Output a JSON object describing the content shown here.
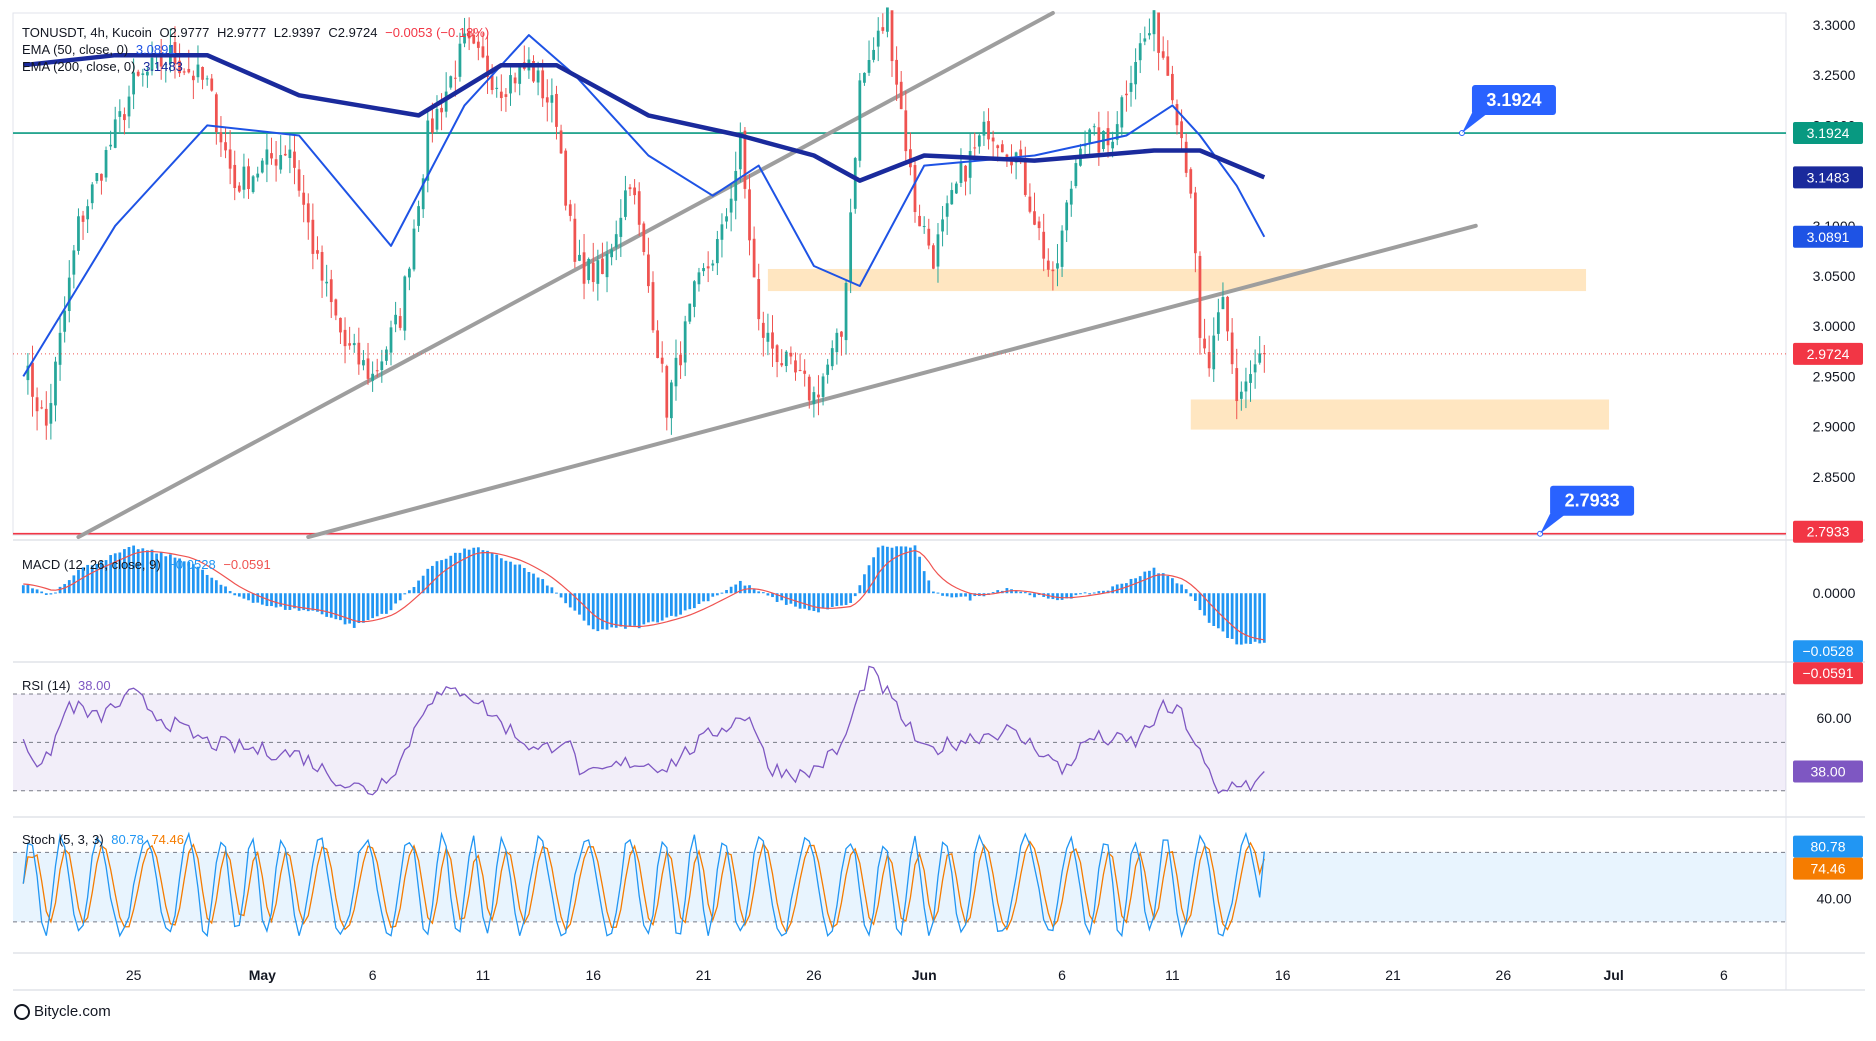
{
  "header": {
    "symbol": "TONUSDT, 4h, Kucoin",
    "open": "O2.9777",
    "high": "H2.9777",
    "low": "L2.9397",
    "close": "C2.9724",
    "change": "−0.0053 (−0.18%)",
    "ema50_label": "EMA (50, close, 0)",
    "ema50_value": "3.0891",
    "ema200_label": "EMA (200, close, 0)",
    "ema200_value": "3.1483"
  },
  "indicators": {
    "macd_label": "MACD (12, 26, close, 9)",
    "macd_value": "−0.0528",
    "signal_value": "−0.0591",
    "rsi_label": "RSI (14)",
    "rsi_value": "38.00",
    "stoch_label": "Stoch (5, 3, 3)",
    "stoch_k": "80.78",
    "stoch_d": "74.46"
  },
  "footer": {
    "brand": "Bitycle.com"
  },
  "colors": {
    "up": "#26a69a",
    "down": "#ef5350",
    "ema50": "#1e53e5",
    "ema200": "#1a2a9c",
    "macd_hist": "#2196f3",
    "macd_signal": "#ef5350",
    "rsi": "#7e57c2",
    "stoch_k": "#2196f3",
    "stoch_d": "#f57c00",
    "horizontal_green": "#089981",
    "horizontal_red": "#f23645",
    "zone": "#ffe0b2",
    "trendline": "#9e9e9e",
    "callout": "#2962ff"
  },
  "chart_data": {
    "type": "candlestick",
    "symbol": "TONUSDT",
    "timeframe": "4h",
    "exchange": "Kucoin",
    "x_tick_labels": [
      "25",
      "May",
      "6",
      "11",
      "16",
      "21",
      "26",
      "Jun",
      "6",
      "11",
      "16",
      "21",
      "26",
      "Jul",
      "6"
    ],
    "x_tick_index": [
      24,
      52,
      76,
      100,
      124,
      148,
      172,
      196,
      226,
      250,
      274,
      298,
      322,
      346,
      370
    ],
    "y_tick_labels": [
      "3.3000",
      "3.2500",
      "3.2000",
      "3.1500",
      "3.1000",
      "3.0500",
      "3.0000",
      "2.9500",
      "2.9000",
      "2.8500",
      "2.8000"
    ],
    "ylim": [
      2.792,
      3.312
    ],
    "last_price": 2.9724,
    "last_price_label": "2.9724",
    "ema50_label": "3.0891",
    "ema200_label": "3.1483",
    "levels": [
      {
        "value": 3.1924,
        "label": "3.1924",
        "color": "green"
      },
      {
        "value": 2.7933,
        "label": "2.7933",
        "color": "red"
      }
    ],
    "zones": [
      {
        "x_start": 162,
        "x_end": 340,
        "y_low": 3.035,
        "y_high": 3.057
      },
      {
        "x_start": 254,
        "x_end": 345,
        "y_low": 2.897,
        "y_high": 2.927
      }
    ],
    "trendlines": [
      {
        "x1": 12,
        "y1": 2.79,
        "x2": 224,
        "y2": 3.312
      },
      {
        "x1": 62,
        "y1": 2.79,
        "x2": 316,
        "y2": 3.1
      }
    ],
    "anchors": [
      {
        "i": 0,
        "close": 2.96
      },
      {
        "i": 5,
        "close": 2.9
      },
      {
        "i": 12,
        "close": 3.1
      },
      {
        "i": 24,
        "close": 3.24
      },
      {
        "i": 32,
        "close": 3.27
      },
      {
        "i": 40,
        "close": 3.24
      },
      {
        "i": 46,
        "close": 3.14
      },
      {
        "i": 52,
        "close": 3.16
      },
      {
        "i": 58,
        "close": 3.18
      },
      {
        "i": 64,
        "close": 3.06
      },
      {
        "i": 70,
        "close": 2.98
      },
      {
        "i": 76,
        "close": 2.95
      },
      {
        "i": 82,
        "close": 3.01
      },
      {
        "i": 88,
        "close": 3.19
      },
      {
        "i": 96,
        "close": 3.28
      },
      {
        "i": 104,
        "close": 3.24
      },
      {
        "i": 110,
        "close": 3.26
      },
      {
        "i": 116,
        "close": 3.21
      },
      {
        "i": 120,
        "close": 3.06
      },
      {
        "i": 126,
        "close": 3.05
      },
      {
        "i": 132,
        "close": 3.15
      },
      {
        "i": 136,
        "close": 3.04
      },
      {
        "i": 140,
        "close": 2.92
      },
      {
        "i": 146,
        "close": 3.03
      },
      {
        "i": 152,
        "close": 3.09
      },
      {
        "i": 156,
        "close": 3.18
      },
      {
        "i": 160,
        "close": 3.0
      },
      {
        "i": 166,
        "close": 2.96
      },
      {
        "i": 172,
        "close": 2.93
      },
      {
        "i": 178,
        "close": 2.99
      },
      {
        "i": 182,
        "close": 3.24
      },
      {
        "i": 188,
        "close": 3.31
      },
      {
        "i": 194,
        "close": 3.12
      },
      {
        "i": 198,
        "close": 3.07
      },
      {
        "i": 204,
        "close": 3.15
      },
      {
        "i": 210,
        "close": 3.2
      },
      {
        "i": 216,
        "close": 3.17
      },
      {
        "i": 220,
        "close": 3.11
      },
      {
        "i": 224,
        "close": 3.04
      },
      {
        "i": 230,
        "close": 3.19
      },
      {
        "i": 236,
        "close": 3.18
      },
      {
        "i": 242,
        "close": 3.27
      },
      {
        "i": 246,
        "close": 3.3
      },
      {
        "i": 250,
        "close": 3.24
      },
      {
        "i": 254,
        "close": 3.14
      },
      {
        "i": 256,
        "close": 2.98
      },
      {
        "i": 258,
        "close": 2.96
      },
      {
        "i": 261,
        "close": 3.02
      },
      {
        "i": 264,
        "close": 2.93
      },
      {
        "i": 268,
        "close": 2.96
      },
      {
        "i": 270,
        "close": 2.9724
      }
    ],
    "ema50_points": [
      {
        "i": 0,
        "v": 2.95
      },
      {
        "i": 20,
        "v": 3.1
      },
      {
        "i": 40,
        "v": 3.2
      },
      {
        "i": 60,
        "v": 3.19
      },
      {
        "i": 80,
        "v": 3.08
      },
      {
        "i": 96,
        "v": 3.22
      },
      {
        "i": 110,
        "v": 3.29
      },
      {
        "i": 120,
        "v": 3.25
      },
      {
        "i": 136,
        "v": 3.17
      },
      {
        "i": 150,
        "v": 3.13
      },
      {
        "i": 160,
        "v": 3.16
      },
      {
        "i": 172,
        "v": 3.06
      },
      {
        "i": 182,
        "v": 3.04
      },
      {
        "i": 196,
        "v": 3.16
      },
      {
        "i": 220,
        "v": 3.17
      },
      {
        "i": 240,
        "v": 3.19
      },
      {
        "i": 250,
        "v": 3.22
      },
      {
        "i": 256,
        "v": 3.19
      },
      {
        "i": 264,
        "v": 3.14
      },
      {
        "i": 270,
        "v": 3.0891
      }
    ],
    "ema200_points": [
      {
        "i": 0,
        "v": 3.26
      },
      {
        "i": 20,
        "v": 3.27
      },
      {
        "i": 40,
        "v": 3.27
      },
      {
        "i": 60,
        "v": 3.23
      },
      {
        "i": 86,
        "v": 3.21
      },
      {
        "i": 104,
        "v": 3.26
      },
      {
        "i": 116,
        "v": 3.26
      },
      {
        "i": 136,
        "v": 3.21
      },
      {
        "i": 156,
        "v": 3.19
      },
      {
        "i": 172,
        "v": 3.17
      },
      {
        "i": 182,
        "v": 3.145
      },
      {
        "i": 196,
        "v": 3.17
      },
      {
        "i": 220,
        "v": 3.165
      },
      {
        "i": 246,
        "v": 3.175
      },
      {
        "i": 256,
        "v": 3.175
      },
      {
        "i": 270,
        "v": 3.1483
      }
    ],
    "macd": {
      "y_tick_labels": [
        "0.0000"
      ],
      "ylim": [
        -0.072,
        0.052
      ],
      "macd_label": "−0.0528",
      "signal_label": "−0.0591",
      "hist_anchors": [
        {
          "i": 0,
          "v": 0.01
        },
        {
          "i": 6,
          "v": -0.002
        },
        {
          "i": 12,
          "v": 0.025
        },
        {
          "i": 24,
          "v": 0.05
        },
        {
          "i": 36,
          "v": 0.035
        },
        {
          "i": 46,
          "v": -0.002
        },
        {
          "i": 54,
          "v": -0.015
        },
        {
          "i": 64,
          "v": -0.02
        },
        {
          "i": 72,
          "v": -0.036
        },
        {
          "i": 80,
          "v": -0.018
        },
        {
          "i": 90,
          "v": 0.035
        },
        {
          "i": 98,
          "v": 0.05
        },
        {
          "i": 108,
          "v": 0.03
        },
        {
          "i": 114,
          "v": 0.01
        },
        {
          "i": 124,
          "v": -0.04
        },
        {
          "i": 134,
          "v": -0.036
        },
        {
          "i": 144,
          "v": -0.02
        },
        {
          "i": 156,
          "v": 0.012
        },
        {
          "i": 164,
          "v": -0.008
        },
        {
          "i": 172,
          "v": -0.02
        },
        {
          "i": 180,
          "v": -0.012
        },
        {
          "i": 186,
          "v": 0.05
        },
        {
          "i": 194,
          "v": 0.05
        },
        {
          "i": 198,
          "v": 0.0
        },
        {
          "i": 206,
          "v": -0.006
        },
        {
          "i": 214,
          "v": 0.006
        },
        {
          "i": 224,
          "v": -0.008
        },
        {
          "i": 236,
          "v": 0.004
        },
        {
          "i": 246,
          "v": 0.026
        },
        {
          "i": 252,
          "v": 0.01
        },
        {
          "i": 258,
          "v": -0.03
        },
        {
          "i": 264,
          "v": -0.055
        },
        {
          "i": 270,
          "v": -0.0528
        }
      ]
    },
    "rsi": {
      "y_tick_labels": [
        "60.00",
        "40.00"
      ],
      "ylim": [
        20,
        82
      ],
      "bands": [
        30,
        50,
        70
      ],
      "value_label": "38.00",
      "anchors": [
        {
          "i": 0,
          "v": 52
        },
        {
          "i": 4,
          "v": 38
        },
        {
          "i": 10,
          "v": 66
        },
        {
          "i": 16,
          "v": 60
        },
        {
          "i": 24,
          "v": 70
        },
        {
          "i": 30,
          "v": 60
        },
        {
          "i": 40,
          "v": 50
        },
        {
          "i": 50,
          "v": 47
        },
        {
          "i": 60,
          "v": 45
        },
        {
          "i": 70,
          "v": 33
        },
        {
          "i": 76,
          "v": 30
        },
        {
          "i": 82,
          "v": 42
        },
        {
          "i": 88,
          "v": 68
        },
        {
          "i": 96,
          "v": 72
        },
        {
          "i": 104,
          "v": 58
        },
        {
          "i": 112,
          "v": 46
        },
        {
          "i": 118,
          "v": 52
        },
        {
          "i": 122,
          "v": 35
        },
        {
          "i": 132,
          "v": 42
        },
        {
          "i": 140,
          "v": 40
        },
        {
          "i": 150,
          "v": 54
        },
        {
          "i": 158,
          "v": 62
        },
        {
          "i": 162,
          "v": 40
        },
        {
          "i": 170,
          "v": 36
        },
        {
          "i": 178,
          "v": 48
        },
        {
          "i": 184,
          "v": 80
        },
        {
          "i": 188,
          "v": 70
        },
        {
          "i": 196,
          "v": 46
        },
        {
          "i": 206,
          "v": 52
        },
        {
          "i": 214,
          "v": 55
        },
        {
          "i": 222,
          "v": 46
        },
        {
          "i": 226,
          "v": 38
        },
        {
          "i": 232,
          "v": 52
        },
        {
          "i": 242,
          "v": 50
        },
        {
          "i": 248,
          "v": 64
        },
        {
          "i": 252,
          "v": 62
        },
        {
          "i": 256,
          "v": 45
        },
        {
          "i": 260,
          "v": 28
        },
        {
          "i": 264,
          "v": 34
        },
        {
          "i": 268,
          "v": 32
        },
        {
          "i": 270,
          "v": 38
        }
      ]
    },
    "stoch": {
      "y_tick_labels": [
        "40.00"
      ],
      "ylim": [
        0,
        108
      ],
      "bands": [
        20,
        80
      ],
      "k_label": "80.78",
      "d_label": "74.46",
      "period": 8,
      "last_k": 80.78,
      "last_d": 74.46
    },
    "current_index": 270,
    "total_index_span": 384
  }
}
